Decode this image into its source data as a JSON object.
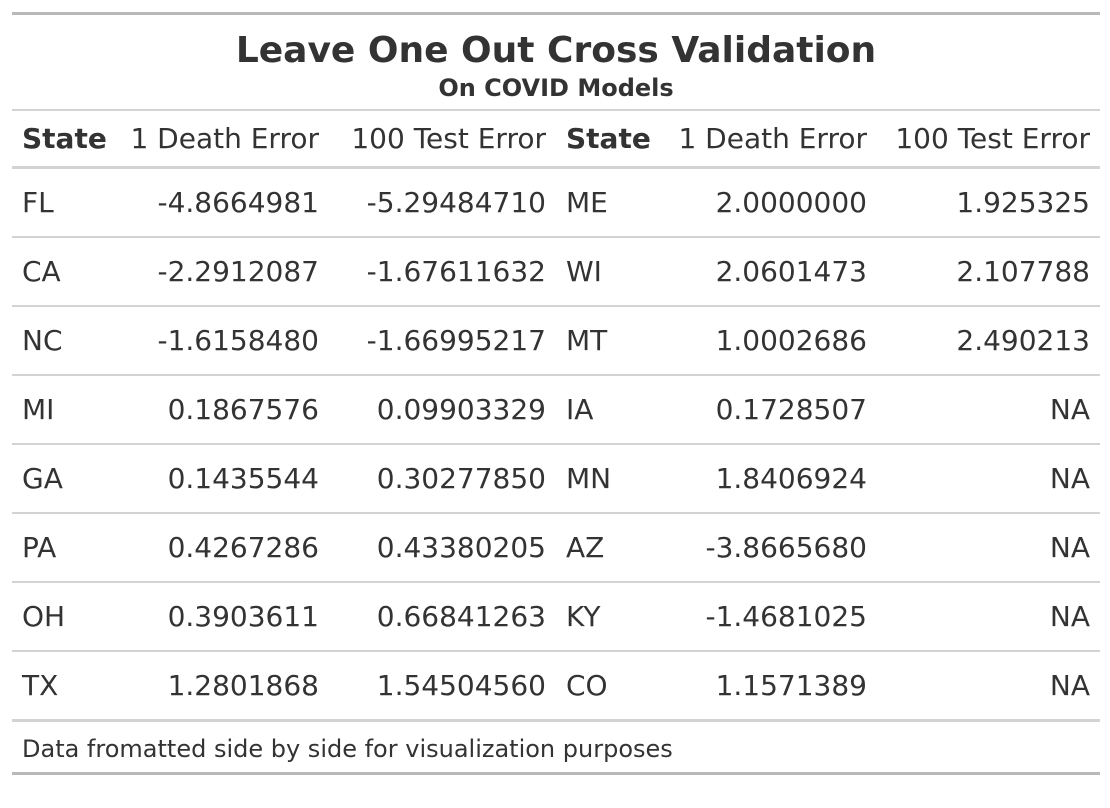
{
  "title": "Leave One Out Cross Validation",
  "subtitle": "On COVID Models",
  "columns": [
    "State",
    "1 Death Error",
    "100 Test Error",
    "State",
    "1 Death Error",
    "100 Test Error"
  ],
  "rows": [
    [
      "FL",
      "-4.8664981",
      "-5.29484710",
      "ME",
      "2.0000000",
      "1.925325"
    ],
    [
      "CA",
      "-2.2912087",
      "-1.67611632",
      "WI",
      "2.0601473",
      "2.107788"
    ],
    [
      "NC",
      "-1.6158480",
      "-1.66995217",
      "MT",
      "1.0002686",
      "2.490213"
    ],
    [
      "MI",
      "0.1867576",
      "0.09903329",
      "IA",
      "0.1728507",
      "NA"
    ],
    [
      "GA",
      "0.1435544",
      "0.30277850",
      "MN",
      "1.8406924",
      "NA"
    ],
    [
      "PA",
      "0.4267286",
      "0.43380205",
      "AZ",
      "-3.8665680",
      "NA"
    ],
    [
      "OH",
      "0.3903611",
      "0.66841263",
      "KY",
      "-1.4681025",
      "NA"
    ],
    [
      "TX",
      "1.2801868",
      "1.54504560",
      "CO",
      "1.1571389",
      "NA"
    ]
  ],
  "source_note": "Data fromatted side by side for visualization purposes"
}
